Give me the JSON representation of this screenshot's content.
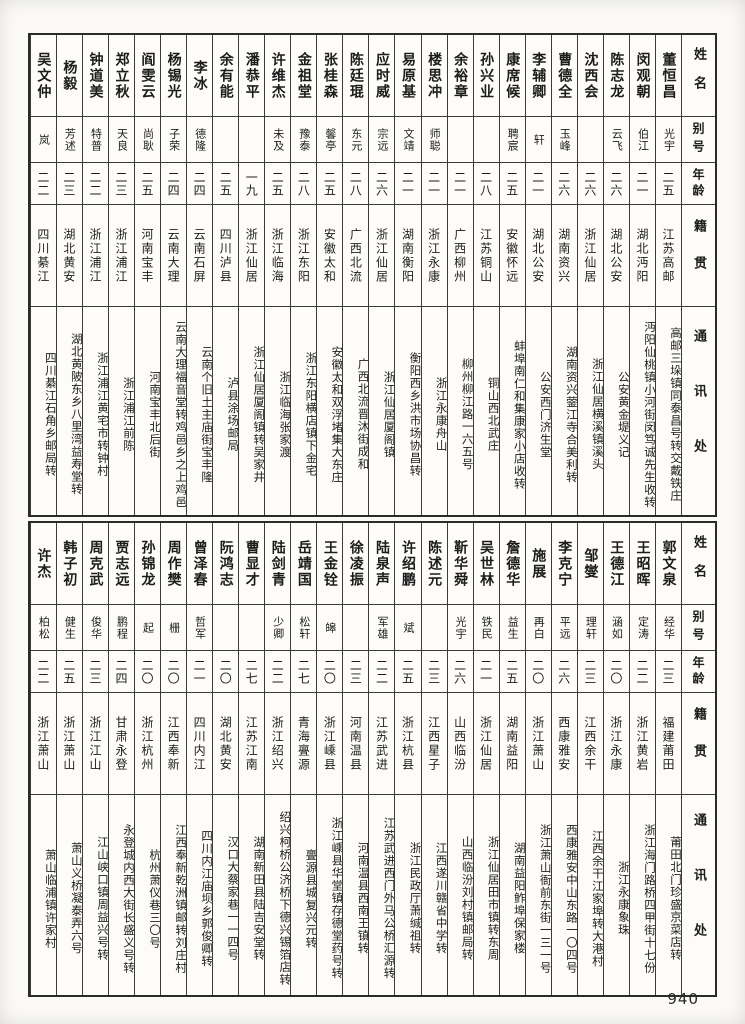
{
  "page": {
    "number": "940"
  },
  "header_labels": {
    "name": "姓名",
    "alias": "别号",
    "age": "年龄",
    "native_place": "籍贯",
    "address": "通讯处"
  },
  "tables": [
    {
      "entries": [
        {
          "name": "董恒昌",
          "alias": "光宇",
          "age": "二五",
          "native": "江苏高邮",
          "address": "高邮三垛镇同泰昌号转交戴铁庄"
        },
        {
          "name": "闵观朝",
          "alias": "伯江",
          "age": "二一",
          "native": "湖北沔阳",
          "address": "沔阳仙桃镇小河街闵笃诚先生收转"
        },
        {
          "name": "陈志龙",
          "alias": "云飞",
          "age": "二六",
          "native": "湖北公安",
          "address": "公安黄金堤义记"
        },
        {
          "name": "沈西会",
          "alias": "",
          "age": "二六",
          "native": "浙江仙居",
          "address": "浙江仙居横溪镇溪头"
        },
        {
          "name": "曹德全",
          "alias": "玉峰",
          "age": "二六",
          "native": "湖南资兴",
          "address": "湖南资兴蓥江寺合美利转"
        },
        {
          "name": "李辅卿",
          "alias": "轩",
          "age": "二一",
          "native": "湖北公安",
          "address": "公安西门济生堂"
        },
        {
          "name": "康席候",
          "alias": "聘宸",
          "age": "二五",
          "native": "安徽怀远",
          "address": "蚌埠南仁和集康家小店收转"
        },
        {
          "name": "孙兴业",
          "alias": "",
          "age": "二八",
          "native": "江苏铜山",
          "address": "铜山西北武庄"
        },
        {
          "name": "余裕章",
          "alias": "",
          "age": "二一",
          "native": "广西柳州",
          "address": "柳州柳江路一六五号"
        },
        {
          "name": "楼思冲",
          "alias": "师聪",
          "age": "二一",
          "native": "浙江永康",
          "address": "浙江永康舟山"
        },
        {
          "name": "易原基",
          "alias": "文靖",
          "age": "二一",
          "native": "湖南衡阳",
          "address": "衡阳西乡洪市场协昌转"
        },
        {
          "name": "应时威",
          "alias": "宗远",
          "age": "二六",
          "native": "浙江仙居",
          "address": "浙江仙居厦阁镇"
        },
        {
          "name": "陈廷琨",
          "alias": "东元",
          "age": "二八",
          "native": "广西北流",
          "address": "广西北流晋沐街成和"
        },
        {
          "name": "张桂森",
          "alias": "馨亭",
          "age": "二五",
          "native": "安徽太和",
          "address": "安徽太和双浮堵集大东庄"
        },
        {
          "name": "金祖堂",
          "alias": "豫泰",
          "age": "二八",
          "native": "浙江东阳",
          "address": "浙江东阳横店镇下金宅"
        },
        {
          "name": "许维杰",
          "alias": "未及",
          "age": "二五",
          "native": "浙江临海",
          "address": "浙江临海张家渡"
        },
        {
          "name": "潘恭平",
          "alias": "",
          "age": "一九",
          "native": "浙江仙居",
          "address": "浙江仙居厦阁镇转吴家井"
        },
        {
          "name": "余有能",
          "alias": "",
          "age": "二五",
          "native": "四川泸县",
          "address": "泸县涂场邮局"
        },
        {
          "name": "李冰",
          "alias": "德隆",
          "age": "二四",
          "native": "云南石屏",
          "address": "云南个旧土主庙街宝丰隆"
        },
        {
          "name": "杨锡光",
          "alias": "子荣",
          "age": "二四",
          "native": "云南大理",
          "address": "云南大理福音堂转鸡邑乡之上鸡邑"
        },
        {
          "name": "阎雯云",
          "alias": "尚耿",
          "age": "二五",
          "native": "河南宝丰",
          "address": "河南宝丰北后街"
        },
        {
          "name": "郑立秋",
          "alias": "天良",
          "age": "二三",
          "native": "浙江浦江",
          "address": "浙江浦江前陈"
        },
        {
          "name": "钟道美",
          "alias": "特普",
          "age": "二二",
          "native": "浙江浦江",
          "address": "浙江浦江黄宅市转钟村"
        },
        {
          "name": "杨毅",
          "alias": "芳述",
          "age": "二三",
          "native": "湖北黄安",
          "address": "湖北黄陂东乡八里湾益寿堂转"
        },
        {
          "name": "吴文仲",
          "alias": "岚",
          "age": "二二",
          "native": "四川綦江",
          "address": "四川綦江石角乡邮局转"
        }
      ]
    },
    {
      "entries": [
        {
          "name": "郭文泉",
          "alias": "经华",
          "age": "二三",
          "native": "福建莆田",
          "address": "莆田北门珍盛京菜店转"
        },
        {
          "name": "王昭晖",
          "alias": "定涛",
          "age": "二二",
          "native": "浙江黄岩",
          "address": "浙江海门路桥四甲街十七份"
        },
        {
          "name": "王德江",
          "alias": "涵如",
          "age": "二〇",
          "native": "浙江永康",
          "address": "浙江永康象珠"
        },
        {
          "name": "邹燮",
          "alias": "理轩",
          "age": "二三",
          "native": "江西余干",
          "address": "江西余干江家埠转大港村"
        },
        {
          "name": "李克宁",
          "alias": "平远",
          "age": "二六",
          "native": "西康雅安",
          "address": "西康雅安中山东路一〇四号"
        },
        {
          "name": "施展",
          "alias": "再白",
          "age": "二〇",
          "native": "浙江萧山",
          "address": "浙江萧山衙前东街一三一号"
        },
        {
          "name": "詹德华",
          "alias": "益生",
          "age": "二五",
          "native": "湖南益阳",
          "address": "湖南益阳鲊埠保家楼"
        },
        {
          "name": "吴世林",
          "alias": "铁民",
          "age": "二一",
          "native": "浙江仙居",
          "address": "浙江仙居田市镇转东周"
        },
        {
          "name": "靳华舜",
          "alias": "光宇",
          "age": "二六",
          "native": "山西临汾",
          "address": "山西临汾刘村镇邮局转"
        },
        {
          "name": "陈述元",
          "alias": "",
          "age": "二三",
          "native": "江西星子",
          "address": "江西遂川赣省中学转"
        },
        {
          "name": "许绍鹏",
          "alias": "斌",
          "age": "二五",
          "native": "浙江杭县",
          "address": "浙江民政厅萧缄祖转"
        },
        {
          "name": "陆泉声",
          "alias": "军雄",
          "age": "二二",
          "native": "江苏武进",
          "address": "江苏武进西门外马公桥汇源转"
        },
        {
          "name": "徐凌振",
          "alias": "",
          "age": "二三",
          "native": "河南温县",
          "address": "河南温县西南王镇转"
        },
        {
          "name": "王金铨",
          "alias": "皞",
          "age": "二〇",
          "native": "浙江嵊县",
          "address": "浙江嵊县华堂镇存德堂药号转"
        },
        {
          "name": "岳靖国",
          "alias": "松轩",
          "age": "二七",
          "native": "青海亹源",
          "address": "亹源县城复兴元转"
        },
        {
          "name": "陆剑青",
          "alias": "少卿",
          "age": "二二",
          "native": "浙江绍兴",
          "address": "绍兴柯桥公济桥下德兴锡箔店转"
        },
        {
          "name": "曹显才",
          "alias": "",
          "age": "二七",
          "native": "江苏江南",
          "address": "湖南新田县陆吉安堂转"
        },
        {
          "name": "阮鸿志",
          "alias": "",
          "age": "二〇",
          "native": "湖北黄安",
          "address": "汉口大蔡家巷一一四号"
        },
        {
          "name": "曾泽春",
          "alias": "哲军",
          "age": "二一",
          "native": "四川内江",
          "address": "四川内江庙坝乡郭俊卿转"
        },
        {
          "name": "周作樊",
          "alias": "栅",
          "age": "二〇",
          "native": "江西奉新",
          "address": "江西奉新乾洲镇邮转刘庄村"
        },
        {
          "name": "孙锦龙",
          "alias": "起",
          "age": "二〇",
          "native": "浙江杭州",
          "address": "杭州萧仪巷三〇号"
        },
        {
          "name": "贾志远",
          "alias": "鹏程",
          "age": "二四",
          "native": "甘肃永登",
          "address": "永登城内西大街长盛义号转"
        },
        {
          "name": "周克武",
          "alias": "俊华",
          "age": "二三",
          "native": "浙江江山",
          "address": "江山峡口镇周益兴号转"
        },
        {
          "name": "韩子初",
          "alias": "健生",
          "age": "二五",
          "native": "浙江萧山",
          "address": "萧山义桥凝泰弄六号"
        },
        {
          "name": "许杰",
          "alias": "柏松",
          "age": "二二",
          "native": "浙江萧山",
          "address": "萧山临浦镇许家村"
        }
      ]
    }
  ]
}
